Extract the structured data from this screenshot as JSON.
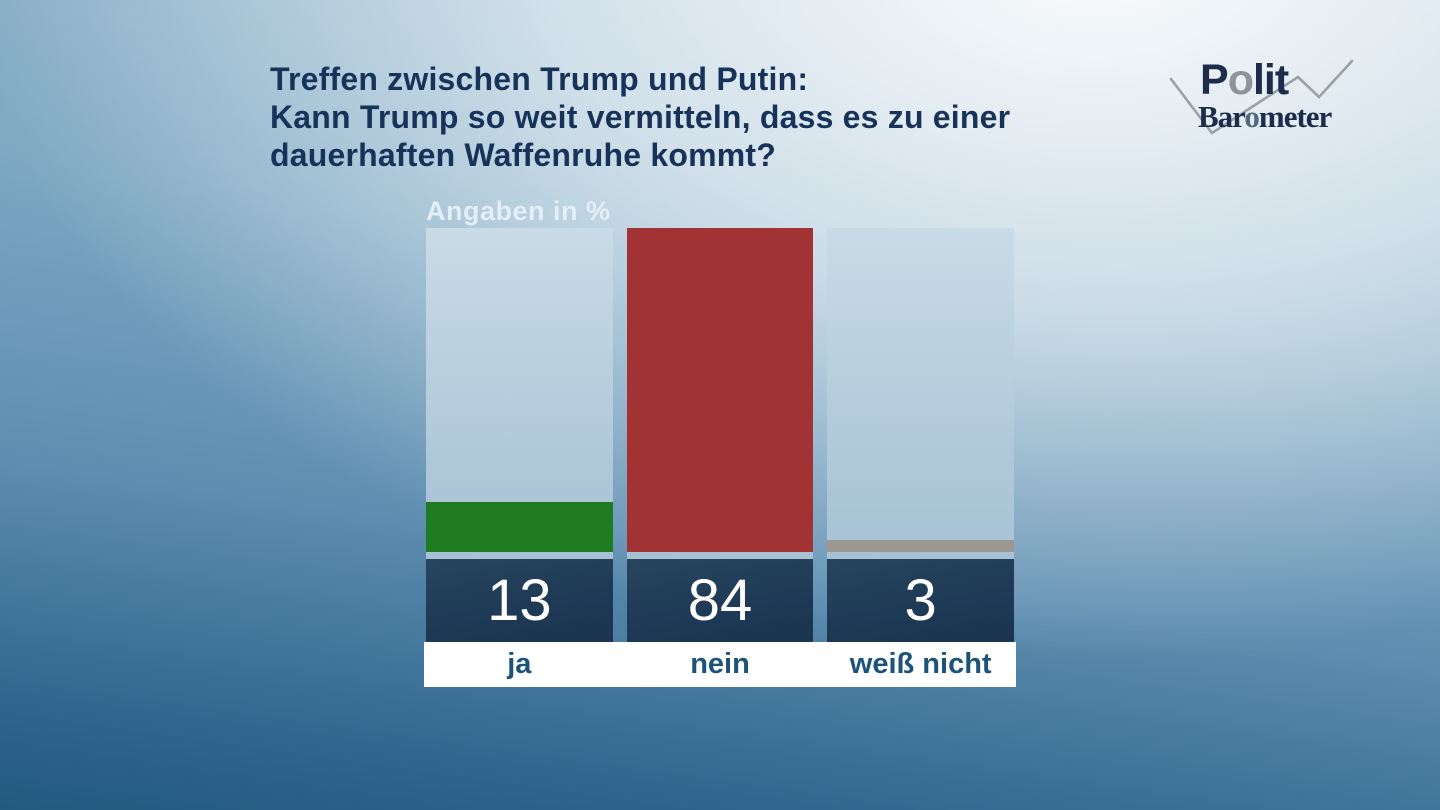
{
  "title": {
    "line1": "Treffen zwischen Trump und Putin:",
    "line2": "Kann Trump so weit vermitteln, dass es zu einer",
    "line3": "dauerhaften Waffenruhe kommt?"
  },
  "logo": {
    "polit_p": "P",
    "polit_o": "o",
    "polit_rest": "lit",
    "baro_pre": "Bar",
    "baro_o": "o",
    "baro_post": "meter"
  },
  "chart_data": {
    "type": "bar",
    "title": "Treffen zwischen Trump und Putin: Kann Trump so weit vermitteln, dass es zu einer dauerhaften Waffenruhe kommt?",
    "unit_label": "Angaben in %",
    "categories": [
      "ja",
      "nein",
      "weiß nicht"
    ],
    "values": [
      13,
      84,
      3
    ],
    "bar_colors": [
      "#1e7b1f",
      "#a23335",
      "#9b9891"
    ],
    "ylim": [
      0,
      84
    ],
    "grid": false,
    "legend": false
  },
  "colors": {
    "title_text": "#17335a",
    "bar_green": "#1e7b1f",
    "bar_red": "#a23335",
    "bar_gray": "#9b9891",
    "number_box": "#1e3a56",
    "number_text": "#ffffff",
    "category_text": "#1c537b",
    "bar_track": "#b4ccdc",
    "logo_dark": "#1c2c4a",
    "logo_gray": "#8d949c"
  }
}
